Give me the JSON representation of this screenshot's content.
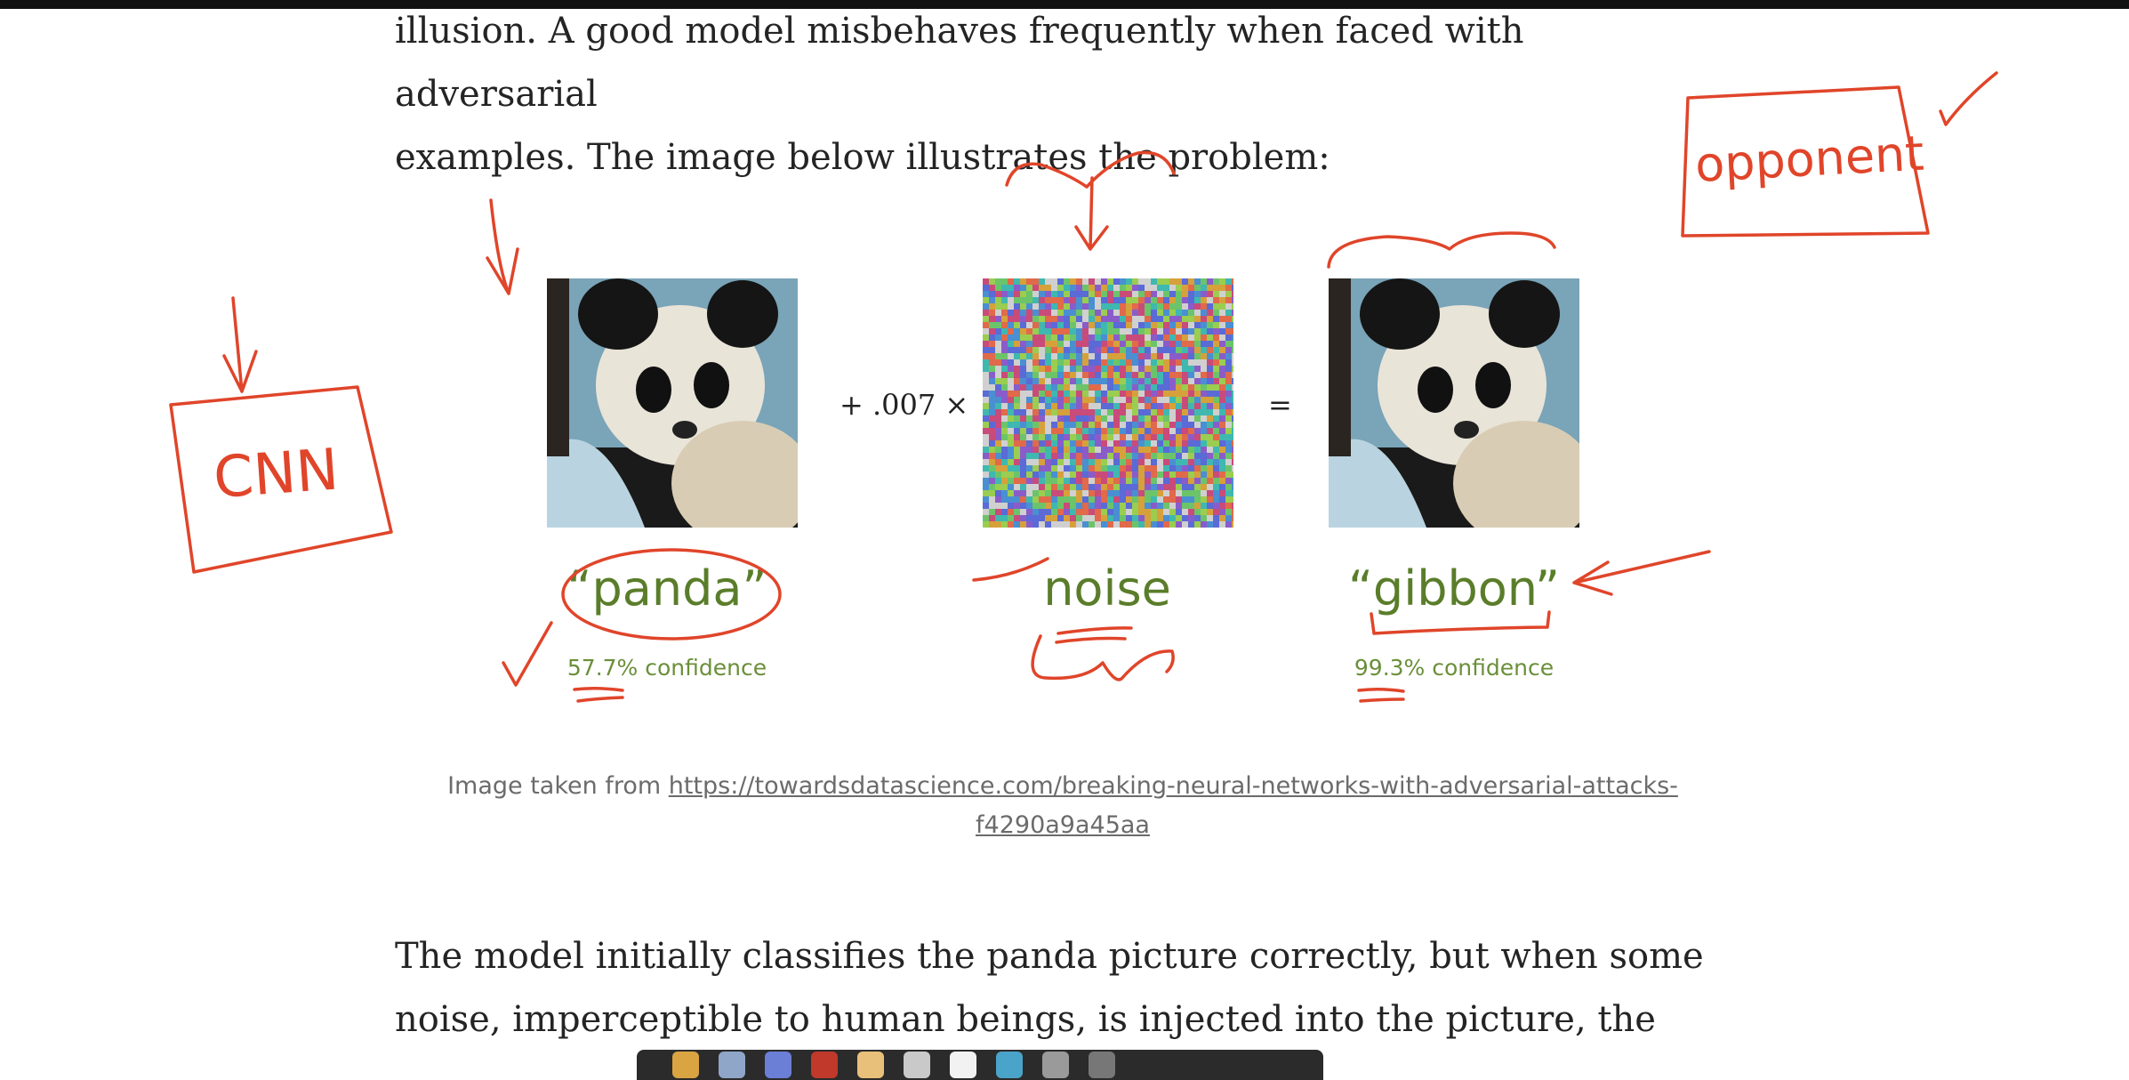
{
  "article": {
    "para1_line1": "illusion. A good model misbehaves frequently when faced with adversarial",
    "para1_line2": "examples. The image below illustrates the problem:",
    "para2_line1": "The model initially classifies the panda picture correctly, but when some",
    "para2_line2": "noise, imperceptible to human beings, is injected into the picture, the"
  },
  "figure": {
    "plus_operator": "+ .007 ×",
    "equals_operator": "=",
    "label_panda": "“panda”",
    "conf_panda": "57.7% confidence",
    "label_noise": "noise",
    "label_gibbon": "“gibbon”",
    "conf_gibbon": "99.3% confidence"
  },
  "caption": {
    "prefix": "Image taken from ",
    "link_line1": "https://towardsdatascience.com/breaking-neural-networks-with-adversarial-attacks-",
    "link_line2": "f4290a9a45aa"
  },
  "annotations": {
    "cnn_box": "CNN",
    "opponent_box": "opponent"
  },
  "colors": {
    "ink": "#e0452a",
    "label_green": "#5a7d2a",
    "text": "#242424"
  }
}
